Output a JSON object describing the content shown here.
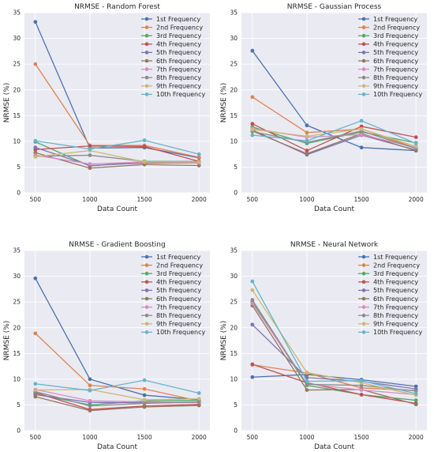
{
  "series_colors": [
    "#4c72b0",
    "#dd8452",
    "#55a868",
    "#c44e52",
    "#8172b3",
    "#937860",
    "#da8bc3",
    "#8c8c8c",
    "#ccb974",
    "#64b5cd"
  ],
  "chart_data": [
    {
      "type": "line",
      "title": "NRMSE - Random Forest",
      "xlabel": "Data Count",
      "ylabel": "NRMSE (%)",
      "x": [
        500,
        1000,
        1500,
        2000
      ],
      "xlim": [
        400,
        2100
      ],
      "ylim": [
        0,
        35
      ],
      "yticks": [
        0,
        5,
        10,
        15,
        20,
        25,
        30,
        35
      ],
      "grid": true,
      "legend": "top-right",
      "series": [
        {
          "name": "1st Frequency",
          "values": [
            33.2,
            8.7,
            8.8,
            6.8
          ]
        },
        {
          "name": "2nd Frequency",
          "values": [
            25.0,
            9.2,
            9.2,
            6.9
          ]
        },
        {
          "name": "3rd Frequency",
          "values": [
            9.9,
            5.2,
            6.1,
            6.1
          ]
        },
        {
          "name": "4th Frequency",
          "values": [
            8.4,
            9.1,
            9.0,
            6.1
          ]
        },
        {
          "name": "5th Frequency",
          "values": [
            8.8,
            5.3,
            5.8,
            5.8
          ]
        },
        {
          "name": "6th Frequency",
          "values": [
            7.8,
            4.8,
            5.5,
            5.3
          ]
        },
        {
          "name": "7th Frequency",
          "values": [
            7.3,
            5.6,
            6.0,
            5.8
          ]
        },
        {
          "name": "8th Frequency",
          "values": [
            7.1,
            7.3,
            6.1,
            6.0
          ]
        },
        {
          "name": "9th Frequency",
          "values": [
            7.0,
            8.2,
            6.0,
            6.0
          ]
        },
        {
          "name": "10th Frequency",
          "values": [
            10.1,
            8.5,
            10.2,
            7.5
          ]
        }
      ]
    },
    {
      "type": "line",
      "title": "NRMSE - Gaussian Process",
      "xlabel": "Data Count",
      "ylabel": "NRMSE (%)",
      "x": [
        500,
        1000,
        1500,
        2000
      ],
      "xlim": [
        400,
        2100
      ],
      "ylim": [
        0,
        35
      ],
      "yticks": [
        0,
        5,
        10,
        15,
        20,
        25,
        30,
        35
      ],
      "grid": true,
      "legend": "top-right",
      "series": [
        {
          "name": "1st Frequency",
          "values": [
            27.6,
            13.1,
            8.8,
            8.2
          ]
        },
        {
          "name": "2nd Frequency",
          "values": [
            18.6,
            11.7,
            12.4,
            8.7
          ]
        },
        {
          "name": "3rd Frequency",
          "values": [
            12.8,
            9.6,
            11.8,
            9.7
          ]
        },
        {
          "name": "4th Frequency",
          "values": [
            13.4,
            8.2,
            12.9,
            10.8
          ]
        },
        {
          "name": "5th Frequency",
          "values": [
            12.2,
            7.4,
            11.2,
            8.3
          ]
        },
        {
          "name": "6th Frequency",
          "values": [
            12.0,
            7.6,
            11.5,
            8.2
          ]
        },
        {
          "name": "7th Frequency",
          "values": [
            12.5,
            10.8,
            11.3,
            8.8
          ]
        },
        {
          "name": "8th Frequency",
          "values": [
            11.9,
            9.8,
            12.0,
            8.6
          ]
        },
        {
          "name": "9th Frequency",
          "values": [
            12.3,
            11.0,
            12.4,
            9.0
          ]
        },
        {
          "name": "10th Frequency",
          "values": [
            11.2,
            10.1,
            14.0,
            9.6
          ]
        }
      ]
    },
    {
      "type": "line",
      "title": "NRMSE - Gradient Boosting",
      "xlabel": "Data Count",
      "ylabel": "NRMSE (%)",
      "x": [
        500,
        1000,
        1500,
        2000
      ],
      "xlim": [
        400,
        2100
      ],
      "ylim": [
        0,
        35
      ],
      "yticks": [
        0,
        5,
        10,
        15,
        20,
        25,
        30,
        35
      ],
      "grid": true,
      "legend": "top-right",
      "series": [
        {
          "name": "1st Frequency",
          "values": [
            29.6,
            10.0,
            6.9,
            6.0
          ]
        },
        {
          "name": "2nd Frequency",
          "values": [
            18.9,
            8.8,
            8.1,
            5.8
          ]
        },
        {
          "name": "3rd Frequency",
          "values": [
            7.1,
            5.0,
            5.8,
            5.9
          ]
        },
        {
          "name": "4th Frequency",
          "values": [
            7.4,
            4.1,
            4.8,
            5.1
          ]
        },
        {
          "name": "5th Frequency",
          "values": [
            7.0,
            5.5,
            5.4,
            5.5
          ]
        },
        {
          "name": "6th Frequency",
          "values": [
            6.6,
            3.9,
            4.6,
            4.9
          ]
        },
        {
          "name": "7th Frequency",
          "values": [
            8.0,
            5.8,
            5.6,
            5.5
          ]
        },
        {
          "name": "8th Frequency",
          "values": [
            7.6,
            4.8,
            5.3,
            5.6
          ]
        },
        {
          "name": "9th Frequency",
          "values": [
            7.9,
            8.0,
            6.0,
            6.2
          ]
        },
        {
          "name": "10th Frequency",
          "values": [
            9.1,
            7.8,
            9.8,
            7.3
          ]
        }
      ]
    },
    {
      "type": "line",
      "title": "NRMSE - Neural Network",
      "xlabel": "Data Count",
      "ylabel": "NRMSE (%)",
      "x": [
        500,
        1000,
        1500,
        2000
      ],
      "xlim": [
        400,
        2100
      ],
      "ylim": [
        0,
        35
      ],
      "yticks": [
        0,
        5,
        10,
        15,
        20,
        25,
        30,
        35
      ],
      "grid": true,
      "legend": "top-right",
      "series": [
        {
          "name": "1st Frequency",
          "values": [
            10.4,
            10.9,
            9.9,
            8.6
          ]
        },
        {
          "name": "2nd Frequency",
          "values": [
            12.8,
            11.2,
            8.3,
            7.8
          ]
        },
        {
          "name": "3rd Frequency",
          "values": [
            25.0,
            8.8,
            7.0,
            5.9
          ]
        },
        {
          "name": "4th Frequency",
          "values": [
            12.9,
            9.3,
            7.0,
            5.3
          ]
        },
        {
          "name": "5th Frequency",
          "values": [
            20.6,
            10.3,
            9.6,
            8.1
          ]
        },
        {
          "name": "6th Frequency",
          "values": [
            24.3,
            7.9,
            8.0,
            5.1
          ]
        },
        {
          "name": "7th Frequency",
          "values": [
            24.7,
            9.1,
            7.9,
            7.0
          ]
        },
        {
          "name": "8th Frequency",
          "values": [
            25.4,
            9.0,
            8.8,
            7.7
          ]
        },
        {
          "name": "9th Frequency",
          "values": [
            27.3,
            11.3,
            9.3,
            6.9
          ]
        },
        {
          "name": "10th Frequency",
          "values": [
            29.0,
            9.6,
            9.7,
            7.2
          ]
        }
      ]
    }
  ]
}
